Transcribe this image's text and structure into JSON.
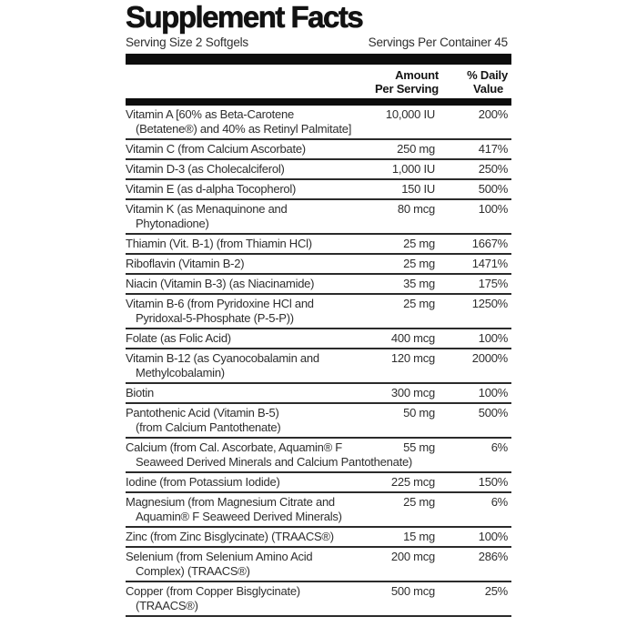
{
  "label": {
    "title": "Supplement Facts",
    "serving_size": "Serving Size 2 Softgels",
    "servings_per_container": "Servings Per Container 45",
    "columns": {
      "amount_line1": "Amount",
      "amount_line2": "Per Serving",
      "dv_line1": "% Daily",
      "dv_line2": "Value"
    },
    "colors": {
      "bar": "#0d0d0d",
      "text": "#2e2e2e",
      "rule": "#2b2b2b",
      "background": "#ffffff"
    },
    "rows": [
      {
        "line1": "Vitamin A [60% as Beta-Carotene",
        "line2": "(Betatene®) and 40% as Retinyl Palmitate]",
        "amount": "10,000 IU",
        "dv": "200%"
      },
      {
        "line1": "Vitamin C (from Calcium Ascorbate)",
        "line2": "",
        "amount": "250 mg",
        "dv": "417%"
      },
      {
        "line1": "Vitamin D-3 (as Cholecalciferol)",
        "line2": "",
        "amount": "1,000 IU",
        "dv": "250%"
      },
      {
        "line1": "Vitamin E (as d-alpha Tocopherol)",
        "line2": "",
        "amount": "150 IU",
        "dv": "500%"
      },
      {
        "line1": "Vitamin K (as Menaquinone and",
        "line2": "Phytonadione)",
        "amount": "80 mcg",
        "dv": "100%"
      },
      {
        "line1": "Thiamin (Vit. B-1) (from Thiamin HCl)",
        "line2": "",
        "amount": "25 mg",
        "dv": "1667%"
      },
      {
        "line1": "Riboflavin (Vitamin B-2)",
        "line2": "",
        "amount": "25 mg",
        "dv": "1471%"
      },
      {
        "line1": "Niacin (Vitamin B-3) (as Niacinamide)",
        "line2": "",
        "amount": "35 mg",
        "dv": "175%"
      },
      {
        "line1": "Vitamin B-6 (from Pyridoxine HCl and",
        "line2": "Pyridoxal-5-Phosphate (P-5-P))",
        "amount": "25 mg",
        "dv": "1250%"
      },
      {
        "line1": "Folate (as Folic Acid)",
        "line2": "",
        "amount": "400 mcg",
        "dv": "100%"
      },
      {
        "line1": "Vitamin B-12 (as Cyanocobalamin and",
        "line2": "Methylcobalamin)",
        "amount": "120 mcg",
        "dv": "2000%"
      },
      {
        "line1": "Biotin",
        "line2": "",
        "amount": "300 mcg",
        "dv": "100%"
      },
      {
        "line1": "Pantothenic Acid (Vitamin B-5)",
        "line2": "(from Calcium Pantothenate)",
        "amount": "50 mg",
        "dv": "500%"
      },
      {
        "line1": "Calcium (from Cal. Ascorbate, Aquamin® F",
        "line2": "Seaweed Derived Minerals and Calcium Pantothenate)",
        "amount": "55 mg",
        "dv": "6%"
      },
      {
        "line1": "Iodine (from Potassium Iodide)",
        "line2": "",
        "amount": "225 mcg",
        "dv": "150%"
      },
      {
        "line1": "Magnesium (from Magnesium Citrate and",
        "line2": "Aquamin® F Seaweed Derived Minerals)",
        "amount": "25 mg",
        "dv": "6%"
      },
      {
        "line1": "Zinc (from Zinc Bisglycinate) (TRAACS®)",
        "line2": "",
        "amount": "15 mg",
        "dv": "100%"
      },
      {
        "line1": "Selenium (from Selenium Amino Acid",
        "line2": "Complex) (TRAACS®)",
        "amount": "200 mcg",
        "dv": "286%"
      },
      {
        "line1": "Copper (from Copper Bisglycinate)",
        "line2": "(TRAACS®)",
        "amount": "500 mcg",
        "dv": "25%"
      }
    ]
  }
}
